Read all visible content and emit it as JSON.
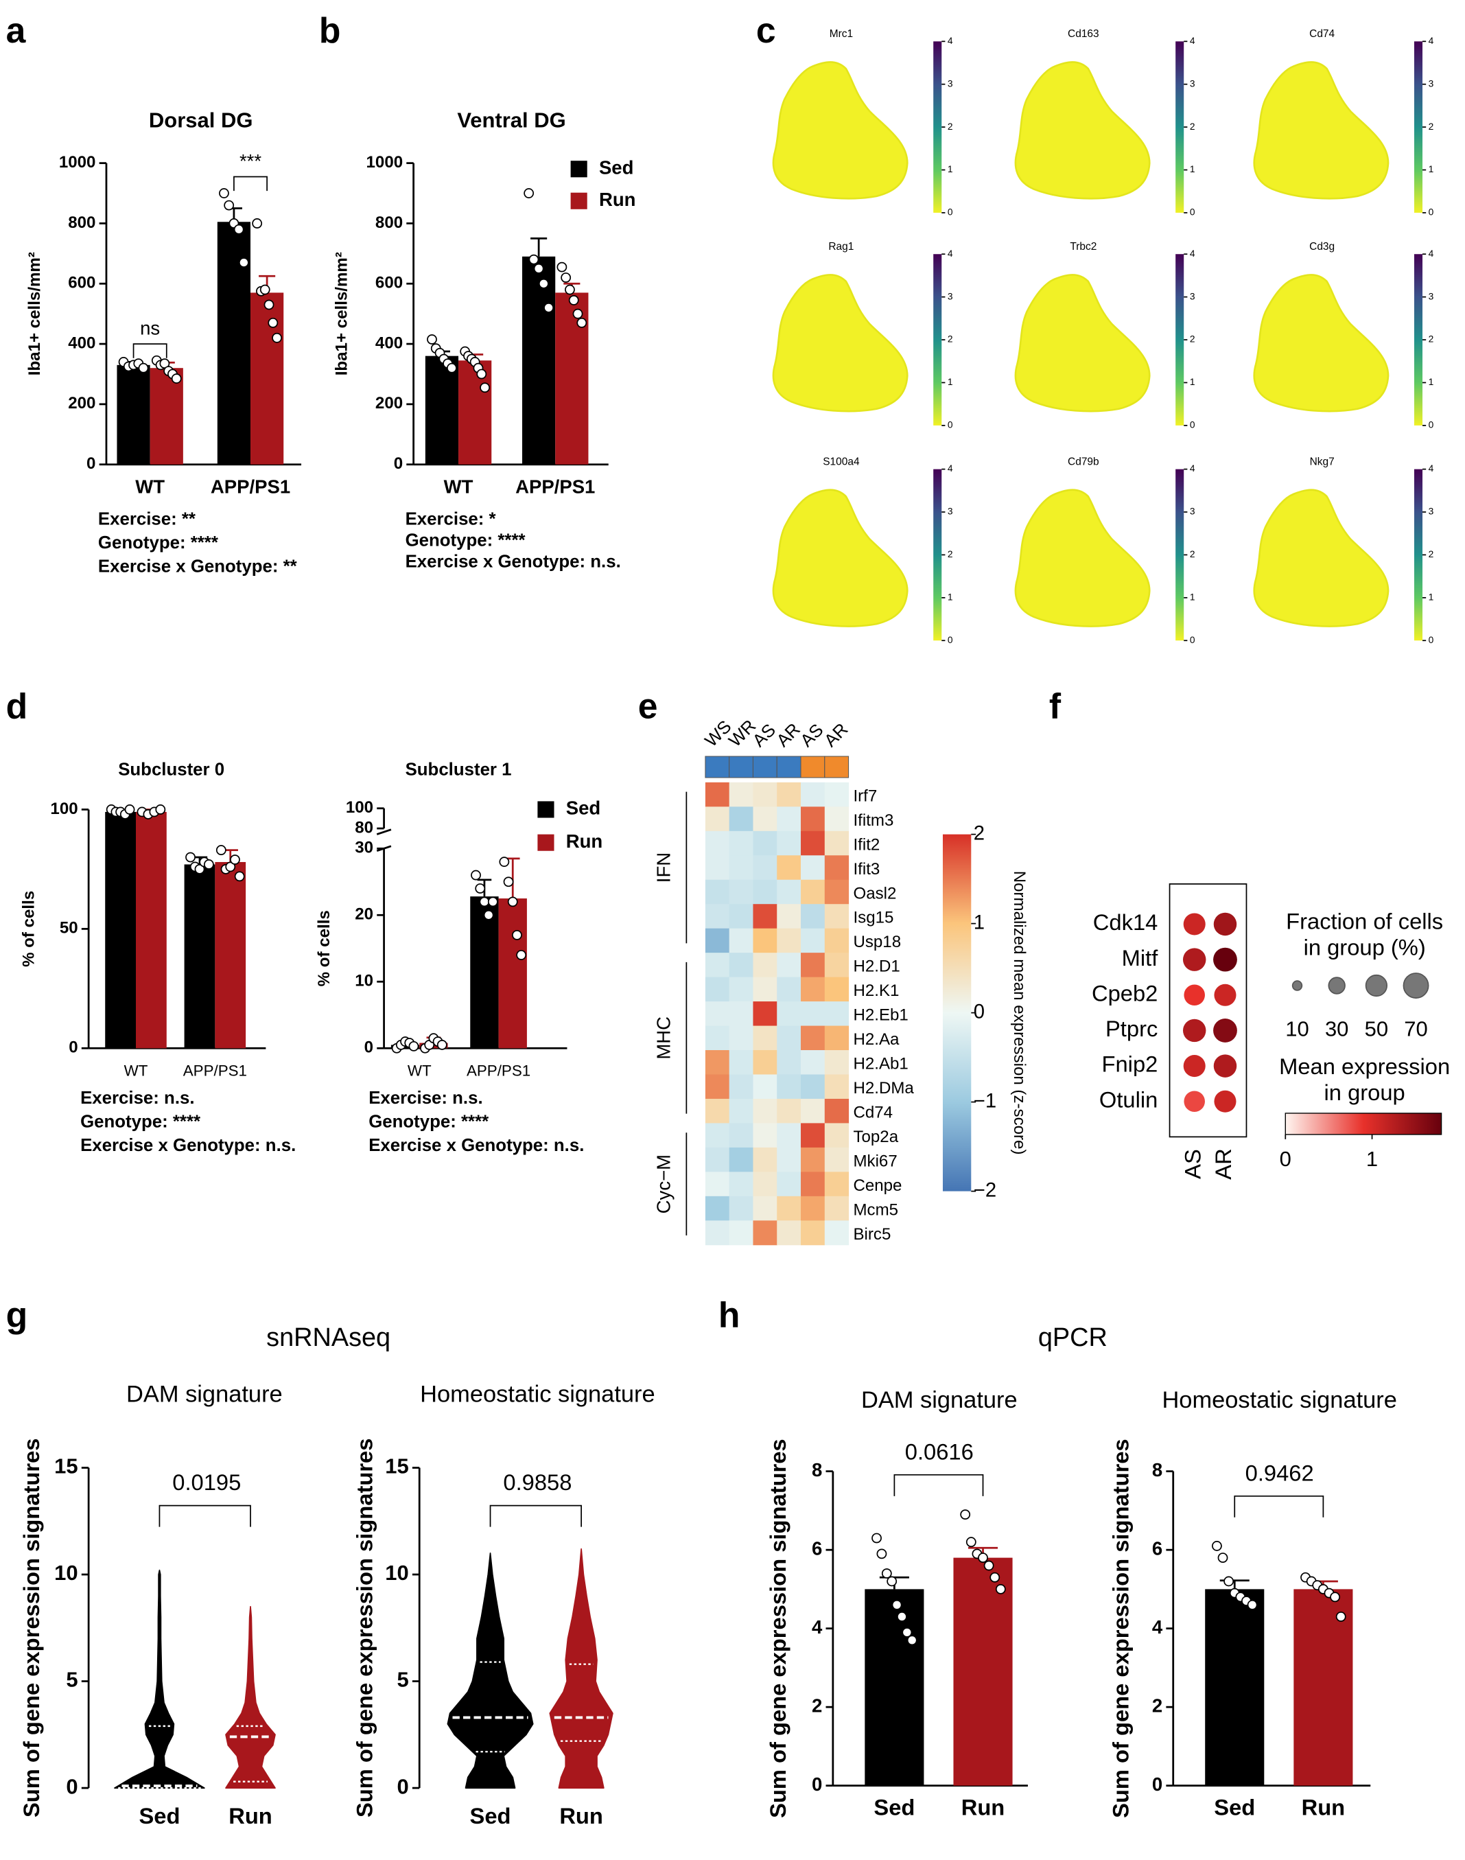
{
  "chart_data": [
    {
      "type": "bar",
      "panel": "a",
      "title": "Dorsal DG",
      "ylabel": "Iba1+ cells/mm²",
      "categories": [
        "WT",
        "APP/PS1"
      ],
      "series": [
        {
          "name": "Sed",
          "color": "#000000",
          "values": [
            330,
            805
          ],
          "errors": [
            10,
            45
          ],
          "points": [
            [
              340,
              325,
              330,
              335,
              320
            ],
            [
              900,
              860,
              800,
              780,
              670
            ]
          ]
        },
        {
          "name": "Run",
          "color": "#a8171c",
          "values": [
            320,
            570
          ],
          "errors": [
            18,
            55
          ],
          "points": [
            [
              345,
              330,
              335,
              310,
              300,
              285
            ],
            [
              800,
              575,
              580,
              530,
              470,
              420
            ]
          ]
        }
      ],
      "ylim": [
        0,
        1000
      ],
      "yticks": [
        0,
        200,
        400,
        600,
        800,
        1000
      ],
      "brackets": [
        "ns",
        "***"
      ],
      "stats": [
        "Exercise: **",
        "Genotype: ****",
        "Exercise x Genotype: **"
      ]
    },
    {
      "type": "bar",
      "panel": "b",
      "title": "Ventral DG",
      "ylabel": "Iba1+ cells/mm²",
      "categories": [
        "WT",
        "APP/PS1"
      ],
      "series": [
        {
          "name": "Sed",
          "color": "#000000",
          "values": [
            360,
            690
          ],
          "errors": [
            15,
            60
          ],
          "points": [
            [
              415,
              385,
              370,
              350,
              335,
              320
            ],
            [
              900,
              680,
              650,
              600,
              520
            ]
          ]
        },
        {
          "name": "Run",
          "color": "#a8171c",
          "values": [
            345,
            570
          ],
          "errors": [
            20,
            30
          ],
          "points": [
            [
              375,
              360,
              350,
              340,
              320,
              300,
              255
            ],
            [
              655,
              620,
              580,
              545,
              500,
              470
            ]
          ]
        }
      ],
      "ylim": [
        0,
        1000
      ],
      "yticks": [
        0,
        200,
        400,
        600,
        800,
        1000
      ],
      "legend": true,
      "stats": [
        "Exercise: *",
        "Genotype: ****",
        "Exercise x Genotype: n.s."
      ]
    },
    {
      "type": "feature",
      "panel": "c",
      "genes": [
        "Mrc1",
        "Cd163",
        "Cd74",
        "Rag1",
        "Trbc2",
        "Cd3g",
        "S100a4",
        "Cd79b",
        "Nkg7"
      ],
      "clim": [
        0,
        4
      ],
      "cticks": [
        0,
        1,
        2,
        3,
        4
      ],
      "colormap": [
        "#f1f126",
        "#5ec962",
        "#21918c",
        "#3b528b",
        "#440154"
      ]
    },
    {
      "type": "bar",
      "panel": "d",
      "title": "Subcluster 0",
      "ylabel": "% of cells",
      "categories": [
        "WT",
        "APP/PS1"
      ],
      "series": [
        {
          "name": "Sed",
          "color": "#000000",
          "values": [
            99,
            77
          ],
          "errors": [
            1,
            3
          ],
          "points": [
            [
              100,
              99,
              99,
              98,
              100
            ],
            [
              80,
              76,
              75,
              78,
              77
            ]
          ]
        },
        {
          "name": "Run",
          "color": "#a8171c",
          "values": [
            99,
            78
          ],
          "errors": [
            1,
            5
          ],
          "points": [
            [
              99,
              98,
              99,
              100
            ],
            [
              83,
              75,
              76,
              79,
              72
            ]
          ]
        }
      ],
      "ylim": [
        0,
        100
      ],
      "yticks": [
        0,
        50,
        100
      ],
      "stats": [
        "Exercise: n.s.",
        "Genotype: ****",
        "Exercise x Genotype: n.s."
      ]
    },
    {
      "type": "bar",
      "title": "Subcluster 1",
      "ylabel": "% of cells",
      "categories": [
        "WT",
        "APP/PS1"
      ],
      "series": [
        {
          "name": "Sed",
          "color": "#000000",
          "values": [
            0.5,
            22.8
          ],
          "errors": [
            0.5,
            2.5
          ],
          "points": [
            [
              0,
              0.5,
              1,
              0.8,
              0.3
            ],
            [
              26,
              24,
              22,
              20,
              22
            ]
          ]
        },
        {
          "name": "Run",
          "color": "#a8171c",
          "values": [
            0.8,
            22.5
          ],
          "errors": [
            0.8,
            6
          ],
          "points": [
            [
              0,
              0.5,
              1.5,
              1,
              0.5
            ],
            [
              28,
              25,
              22,
              17,
              14
            ]
          ]
        }
      ],
      "ylim": [
        0,
        30
      ],
      "yticks": [
        0,
        10,
        20,
        30
      ],
      "ylim_break": [
        80,
        100
      ],
      "yticks_break": [
        80,
        100
      ],
      "legend": true,
      "stats": [
        "Exercise: n.s.",
        "Genotype: ****",
        "Exercise x Genotype: n.s."
      ]
    },
    {
      "type": "heatmap",
      "panel": "e",
      "columns": [
        "WS",
        "WR",
        "AS",
        "AR",
        "AS",
        "AR"
      ],
      "column_colors": [
        "#3b7bbf",
        "#3b7bbf",
        "#3b7bbf",
        "#3b7bbf",
        "#f08a2c",
        "#f08a2c"
      ],
      "rows": [
        "Irf7",
        "Ifitm3",
        "Ifit2",
        "Ifit3",
        "Oasl2",
        "Isg15",
        "Usp18",
        "H2.D1",
        "H2.K1",
        "H2.Eb1",
        "H2.Aa",
        "H2.Ab1",
        "H2.DMa",
        "Cd74",
        "Top2a",
        "Mki67",
        "Cenpe",
        "Mcm5",
        "Birc5"
      ],
      "row_groups": [
        "IFN",
        "IFN",
        "IFN",
        "IFN",
        "IFN",
        "IFN",
        "IFN",
        "MHC",
        "MHC",
        "MHC",
        "MHC",
        "MHC",
        "MHC",
        "MHC",
        "Cyc−M",
        "Cyc−M",
        "Cyc−M",
        "Cyc−M",
        "Cyc−M"
      ],
      "values": [
        [
          1.6,
          0.2,
          0.3,
          0.6,
          -0.2,
          -0.1
        ],
        [
          0.3,
          -0.8,
          0.2,
          -0.2,
          1.6,
          0.1
        ],
        [
          -0.2,
          -0.3,
          -0.5,
          -0.3,
          1.8,
          0.4
        ],
        [
          -0.2,
          -0.3,
          -0.4,
          0.9,
          -0.2,
          1.5
        ],
        [
          -0.5,
          -0.4,
          -0.5,
          -0.3,
          0.8,
          1.4
        ],
        [
          -0.4,
          -0.5,
          1.8,
          0.2,
          -0.6,
          0.5
        ],
        [
          -1.2,
          -0.2,
          1.0,
          0.4,
          -0.3,
          0.8
        ],
        [
          -0.3,
          -0.5,
          0.3,
          -0.2,
          1.5,
          0.7
        ],
        [
          -0.5,
          -0.3,
          0.2,
          -0.4,
          1.2,
          1.0
        ],
        [
          -0.2,
          -0.2,
          1.9,
          -0.3,
          -0.3,
          -0.3
        ],
        [
          -0.3,
          -0.2,
          0.4,
          -0.4,
          1.4,
          1.1
        ],
        [
          1.3,
          -0.3,
          0.8,
          -0.4,
          -0.2,
          0.3
        ],
        [
          1.4,
          -0.4,
          -0.1,
          -0.5,
          -0.7,
          0.5
        ],
        [
          0.6,
          -0.3,
          0.2,
          0.4,
          0.2,
          1.6
        ],
        [
          -0.3,
          -0.4,
          0.1,
          -0.2,
          1.8,
          0.4
        ],
        [
          -0.4,
          -0.9,
          0.4,
          -0.2,
          1.3,
          0.3
        ],
        [
          -0.1,
          -0.3,
          0.3,
          -0.3,
          1.5,
          0.8
        ],
        [
          -0.9,
          -0.4,
          0.2,
          0.7,
          1.2,
          0.5
        ],
        [
          -0.2,
          -0.1,
          1.4,
          0.3,
          0.8,
          -0.1
        ]
      ],
      "clim": [
        -2,
        2
      ],
      "cticks": [
        2,
        1,
        0,
        {
          "value": -1,
          "label": "−1"
        },
        {
          "value": -2,
          "label": "−2"
        }
      ],
      "colormap": [
        "#4575b4",
        "#9ccae0",
        "#eef7f4",
        "#fbc57c",
        "#d73027"
      ],
      "colorbar_label": "Normalized mean expression (z-score)"
    },
    {
      "type": "dotplot",
      "panel": "f",
      "genes": [
        "Cdk14",
        "Mitf",
        "Cpeb2",
        "Ptprc",
        "Fnip2",
        "Otulin"
      ],
      "series": [
        {
          "name": "AS",
          "fraction": [
            55,
            60,
            50,
            60,
            55,
            50
          ],
          "expression": [
            1.1,
            1.3,
            0.9,
            1.3,
            1.1,
            0.8
          ]
        },
        {
          "name": "AR",
          "fraction": [
            60,
            65,
            55,
            65,
            60,
            55
          ],
          "expression": [
            1.4,
            1.8,
            1.1,
            1.6,
            1.3,
            1.1
          ]
        }
      ],
      "size_title": [
        "Fraction of cells",
        "in group (%)"
      ],
      "size_ticks": [
        10,
        30,
        50,
        70
      ],
      "color_title": [
        "Mean expression",
        "in group"
      ],
      "color_ticks": [
        0,
        1
      ],
      "clim": [
        0,
        1.8
      ],
      "colormap": [
        "#fff5f0",
        "#e8312b",
        "#67000d"
      ]
    },
    {
      "type": "violin",
      "panel": "g",
      "section": "snRNAseq",
      "title": "DAM signature",
      "ylabel": "Sum of gene expression signatures",
      "series": [
        {
          "name": "Sed",
          "color": "#000000",
          "profile_y": [
            0,
            0.5,
            1,
            1.5,
            2,
            2.5,
            3,
            3.5,
            4,
            5,
            6,
            7,
            8,
            9,
            10,
            10.2
          ],
          "profile_w": [
            1,
            0.6,
            0.12,
            0.1,
            0.18,
            0.3,
            0.32,
            0.2,
            0.1,
            0.05,
            0.04,
            0.03,
            0.03,
            0.02,
            0.02,
            0
          ],
          "median": 0.1,
          "quartiles": [
            0,
            2.9
          ]
        },
        {
          "name": "Run",
          "color": "#a8171c",
          "profile_y": [
            0,
            0.5,
            1,
            1.5,
            2,
            2.5,
            3,
            3.5,
            4,
            5,
            6,
            7,
            8,
            8.5
          ],
          "profile_w": [
            0.55,
            0.4,
            0.25,
            0.3,
            0.5,
            0.55,
            0.35,
            0.2,
            0.12,
            0.07,
            0.05,
            0.03,
            0.02,
            0
          ],
          "median": 2.4,
          "quartiles": [
            0.3,
            2.9
          ]
        }
      ],
      "ylim": [
        0,
        15
      ],
      "yticks": [
        0,
        5,
        10,
        15
      ],
      "p_value": 0.0195
    },
    {
      "type": "violin",
      "title": "Homeostatic signature",
      "ylabel": "Sum of gene expression signatures",
      "series": [
        {
          "name": "Sed",
          "color": "#000000",
          "profile_y": [
            0,
            0.5,
            1,
            1.5,
            2,
            2.5,
            3,
            3.5,
            4,
            4.5,
            5,
            6,
            7,
            8,
            9,
            10,
            11
          ],
          "profile_w": [
            0.55,
            0.5,
            0.35,
            0.3,
            0.55,
            0.8,
            0.95,
            0.9,
            0.7,
            0.5,
            0.4,
            0.3,
            0.3,
            0.2,
            0.12,
            0.05,
            0
          ],
          "median": 3.3,
          "quartiles": [
            1.7,
            5.9
          ]
        },
        {
          "name": "Run",
          "color": "#a8171c",
          "profile_y": [
            0,
            0.5,
            1,
            1.5,
            2,
            2.5,
            3,
            3.5,
            4,
            4.5,
            5,
            6,
            7,
            8,
            9,
            10,
            11.2
          ],
          "profile_w": [
            0.5,
            0.45,
            0.35,
            0.35,
            0.5,
            0.6,
            0.65,
            0.7,
            0.55,
            0.4,
            0.32,
            0.35,
            0.3,
            0.2,
            0.12,
            0.05,
            0
          ],
          "median": 3.3,
          "quartiles": [
            2.2,
            5.8
          ]
        }
      ],
      "ylim": [
        0,
        15
      ],
      "yticks": [
        0,
        5,
        10,
        15
      ],
      "p_value": 0.9858
    },
    {
      "type": "bar",
      "panel": "h",
      "section": "qPCR",
      "title": "DAM signature",
      "ylabel": "Sum of gene expression signatures",
      "categories": [
        "Sed",
        "Run"
      ],
      "values": [
        5.0,
        5.8
      ],
      "errors": [
        0.3,
        0.25
      ],
      "colors": [
        "#000000",
        "#a8171c"
      ],
      "points": [
        [
          6.3,
          5.9,
          5.4,
          5.2,
          4.6,
          4.3,
          3.9,
          3.7
        ],
        [
          6.9,
          6.2,
          5.9,
          5.8,
          5.6,
          5.3,
          5.0
        ]
      ],
      "ylim": [
        0,
        8
      ],
      "yticks": [
        0,
        2,
        4,
        6,
        8
      ],
      "p_value": 0.0616
    },
    {
      "type": "bar",
      "title": "Homeostatic signature",
      "ylabel": "Sum of gene expression signatures",
      "categories": [
        "Sed",
        "Run"
      ],
      "values": [
        5.0,
        5.0
      ],
      "errors": [
        0.22,
        0.2
      ],
      "colors": [
        "#000000",
        "#a8171c"
      ],
      "points": [
        [
          6.1,
          5.8,
          5.2,
          4.9,
          4.8,
          4.7,
          4.6
        ],
        [
          5.3,
          5.2,
          5.1,
          5.0,
          4.9,
          4.8,
          4.3
        ]
      ],
      "ylim": [
        0,
        8
      ],
      "yticks": [
        0,
        2,
        4,
        6,
        8
      ],
      "p_value": 0.9462
    }
  ]
}
